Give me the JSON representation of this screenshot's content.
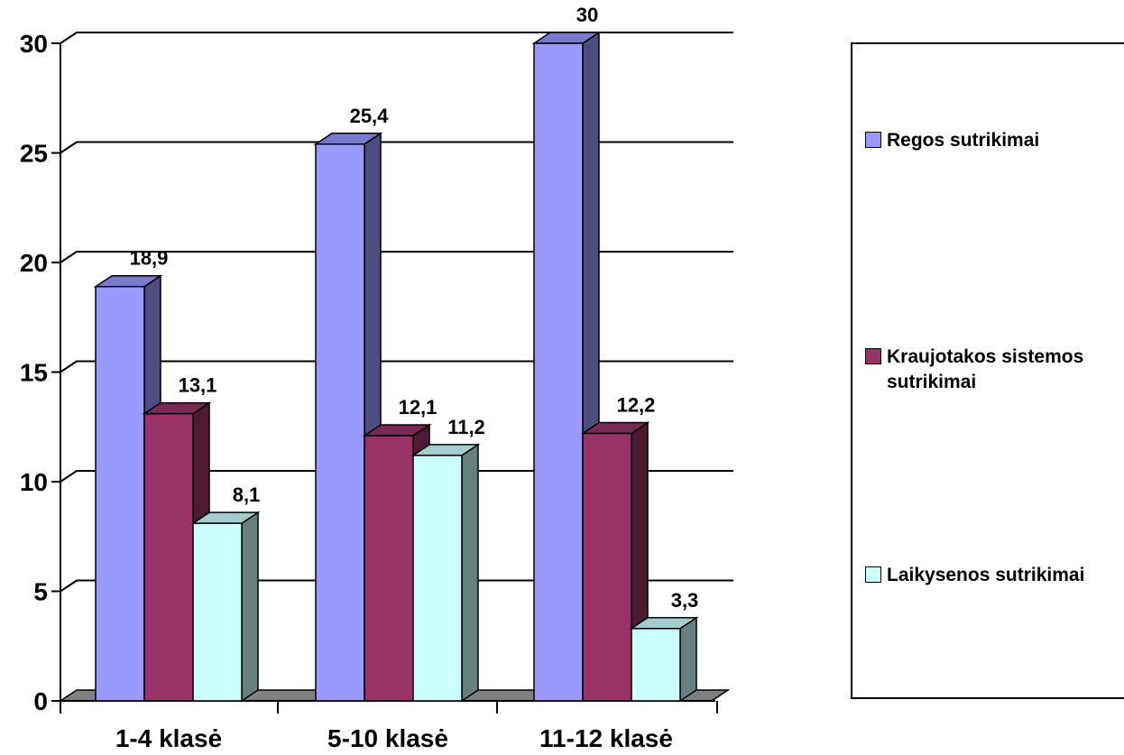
{
  "chart_data": {
    "type": "bar",
    "categories": [
      "1-4 klasė",
      "5-10 klasė",
      "11-12 klasė"
    ],
    "series": [
      {
        "name": "Regos sutrikimai",
        "values": [
          18.9,
          25.4,
          30
        ],
        "color": "#9999ff",
        "side_color": "#4d4d80",
        "top_color": "#7a7acc"
      },
      {
        "name": "Kraujotakos sistemos sutrikimai",
        "values": [
          13.1,
          12.1,
          12.2
        ],
        "color": "#993366",
        "side_color": "#4d1a33",
        "top_color": "#7a2952"
      },
      {
        "name": "Laikysenos sutrikimai",
        "values": [
          8.1,
          11.2,
          3.3
        ],
        "color": "#ccffff",
        "side_color": "#668080",
        "top_color": "#a3cccc"
      }
    ],
    "data_labels": [
      [
        "18,9",
        "25,4",
        "30"
      ],
      [
        "13,1",
        "12,1",
        "12,2"
      ],
      [
        "8,1",
        "11,2",
        "3,3"
      ]
    ],
    "y_ticks": [
      "0",
      "5",
      "10",
      "15",
      "20",
      "25",
      "30"
    ],
    "ylim": [
      0,
      30
    ],
    "grid": true,
    "legend_position": "right",
    "title": "",
    "xlabel": "",
    "ylabel": ""
  }
}
